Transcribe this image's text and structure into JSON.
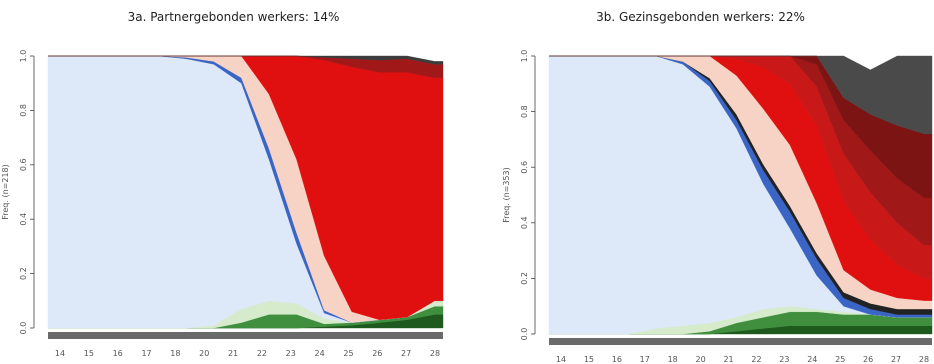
{
  "chart_data": [
    {
      "type": "area",
      "title": "3a. Partnergebonden werkers: 14%",
      "ylabel": "Freq. (n=218)",
      "x_ticks": [
        "14",
        "15",
        "16",
        "17",
        "18",
        "20",
        "21",
        "22",
        "23",
        "24",
        "25",
        "26",
        "27",
        "28"
      ],
      "y_ticks": [
        "0.0",
        "0.2",
        "0.4",
        "0.6",
        "0.8",
        "1.0"
      ],
      "ylim": [
        0,
        1
      ],
      "x": [
        14,
        15,
        16,
        17,
        18,
        19,
        20,
        21,
        22,
        23,
        24,
        25,
        26,
        27,
        28,
        28.3
      ],
      "series": [
        {
          "color": "#1e5a1e",
          "values": [
            0,
            0,
            0,
            0,
            0,
            0,
            0,
            0,
            0,
            0,
            0.005,
            0.01,
            0.02,
            0.03,
            0.05,
            0.05
          ]
        },
        {
          "color": "#3f8f3f",
          "values": [
            0,
            0,
            0,
            0,
            0,
            0,
            0,
            0.02,
            0.05,
            0.05,
            0.01,
            0.01,
            0.01,
            0.01,
            0.03,
            0.03
          ]
        },
        {
          "color": "#d5ebcb",
          "values": [
            0,
            0,
            0,
            0,
            0,
            0,
            0.01,
            0.05,
            0.05,
            0.04,
            0.02,
            0,
            0,
            0,
            0.02,
            0.02
          ]
        },
        {
          "color": "#dde8f8",
          "values": [
            1.0,
            1.0,
            1.0,
            1.0,
            1.0,
            0.99,
            0.96,
            0.83,
            0.52,
            0.22,
            0.02,
            0,
            0,
            0,
            0,
            0
          ]
        },
        {
          "color": "#3a65c4",
          "values": [
            0,
            0,
            0,
            0,
            0,
            0.005,
            0.01,
            0.02,
            0.04,
            0.04,
            0.01,
            0,
            0,
            0,
            0,
            0
          ]
        },
        {
          "color": "#f6d3c5",
          "values": [
            0,
            0,
            0,
            0,
            0,
            0.005,
            0.02,
            0.08,
            0.2,
            0.27,
            0.2,
            0.04,
            0,
            0,
            0,
            0
          ]
        },
        {
          "color": "#e01010",
          "values": [
            0,
            0,
            0,
            0,
            0,
            0,
            0,
            0,
            0.14,
            0.38,
            0.72,
            0.9,
            0.91,
            0.9,
            0.82,
            0.82
          ]
        },
        {
          "color": "#a01818",
          "values": [
            0,
            0,
            0,
            0,
            0,
            0,
            0,
            0,
            0,
            0,
            0.01,
            0.03,
            0.045,
            0.05,
            0.05,
            0.05
          ]
        },
        {
          "color": "#3c3c3c",
          "values": [
            0,
            0,
            0,
            0,
            0,
            0,
            0,
            0,
            0,
            0,
            0.005,
            0.01,
            0.015,
            0.01,
            0.01,
            0.01
          ]
        }
      ]
    },
    {
      "type": "area",
      "title": "3b. Gezinsgebonden werkers: 22%",
      "ylabel": "Freq. (n=353)",
      "x_ticks": [
        "14",
        "15",
        "16",
        "17",
        "18",
        "20",
        "21",
        "22",
        "23",
        "24",
        "25",
        "26",
        "27",
        "28"
      ],
      "y_ticks": [
        "0.0",
        "0.2",
        "0.4",
        "0.6",
        "0.8",
        "1.0"
      ],
      "ylim": [
        0,
        1
      ],
      "x": [
        14,
        15,
        16,
        17,
        18,
        19,
        20,
        21,
        22,
        23,
        24,
        25,
        26,
        27,
        28,
        28.3
      ],
      "series": [
        {
          "color": "#1e5a1e",
          "values": [
            0,
            0,
            0,
            0,
            0,
            0,
            0,
            0.01,
            0.02,
            0.03,
            0.03,
            0.03,
            0.03,
            0.03,
            0.03,
            0.03
          ]
        },
        {
          "color": "#3f8f3f",
          "values": [
            0,
            0,
            0,
            0,
            0,
            0,
            0.01,
            0.03,
            0.04,
            0.05,
            0.05,
            0.04,
            0.04,
            0.03,
            0.03,
            0.03
          ]
        },
        {
          "color": "#d5ebcb",
          "values": [
            0,
            0,
            0,
            0,
            0.02,
            0.03,
            0.03,
            0.02,
            0.03,
            0.02,
            0.01,
            0.01,
            0,
            0,
            0,
            0
          ]
        },
        {
          "color": "#dde8f8",
          "values": [
            1.0,
            1.0,
            1.0,
            1.0,
            0.98,
            0.94,
            0.85,
            0.68,
            0.45,
            0.28,
            0.12,
            0.02,
            0,
            0,
            0,
            0
          ]
        },
        {
          "color": "#3a65c4",
          "values": [
            0,
            0,
            0,
            0,
            0,
            0.01,
            0.02,
            0.03,
            0.05,
            0.06,
            0.06,
            0.03,
            0.02,
            0.01,
            0.01,
            0.01
          ]
        },
        {
          "color": "#222222",
          "values": [
            0,
            0,
            0,
            0,
            0,
            0,
            0.01,
            0.02,
            0.02,
            0.02,
            0.02,
            0.02,
            0.02,
            0.02,
            0.02,
            0.02
          ]
        },
        {
          "color": "#f6d3c5",
          "values": [
            0,
            0,
            0,
            0,
            0,
            0.02,
            0.08,
            0.14,
            0.2,
            0.22,
            0.18,
            0.08,
            0.05,
            0.04,
            0.03,
            0.03
          ]
        },
        {
          "color": "#e01010",
          "values": [
            0,
            0,
            0,
            0,
            0,
            0,
            0,
            0.06,
            0.15,
            0.22,
            0.28,
            0.25,
            0.18,
            0.12,
            0.08,
            0.08
          ]
        },
        {
          "color": "#c91818",
          "values": [
            0,
            0,
            0,
            0,
            0,
            0,
            0,
            0.02,
            0.05,
            0.1,
            0.14,
            0.17,
            0.17,
            0.15,
            0.12,
            0.12
          ]
        },
        {
          "color": "#a01818",
          "values": [
            0,
            0,
            0,
            0,
            0,
            0,
            0,
            0,
            0.02,
            0.06,
            0.08,
            0.12,
            0.15,
            0.16,
            0.17,
            0.17
          ]
        },
        {
          "color": "#7d1414",
          "values": [
            0,
            0,
            0,
            0,
            0,
            0,
            0,
            0,
            0,
            0.02,
            0.03,
            0.08,
            0.13,
            0.19,
            0.23,
            0.23
          ]
        },
        {
          "color": "#4a4a4a",
          "values": [
            0,
            0,
            0,
            0,
            0,
            0,
            0,
            0,
            0,
            0.02,
            0.1,
            0.15,
            0.16,
            0.25,
            0.28,
            0.28
          ]
        }
      ]
    }
  ]
}
